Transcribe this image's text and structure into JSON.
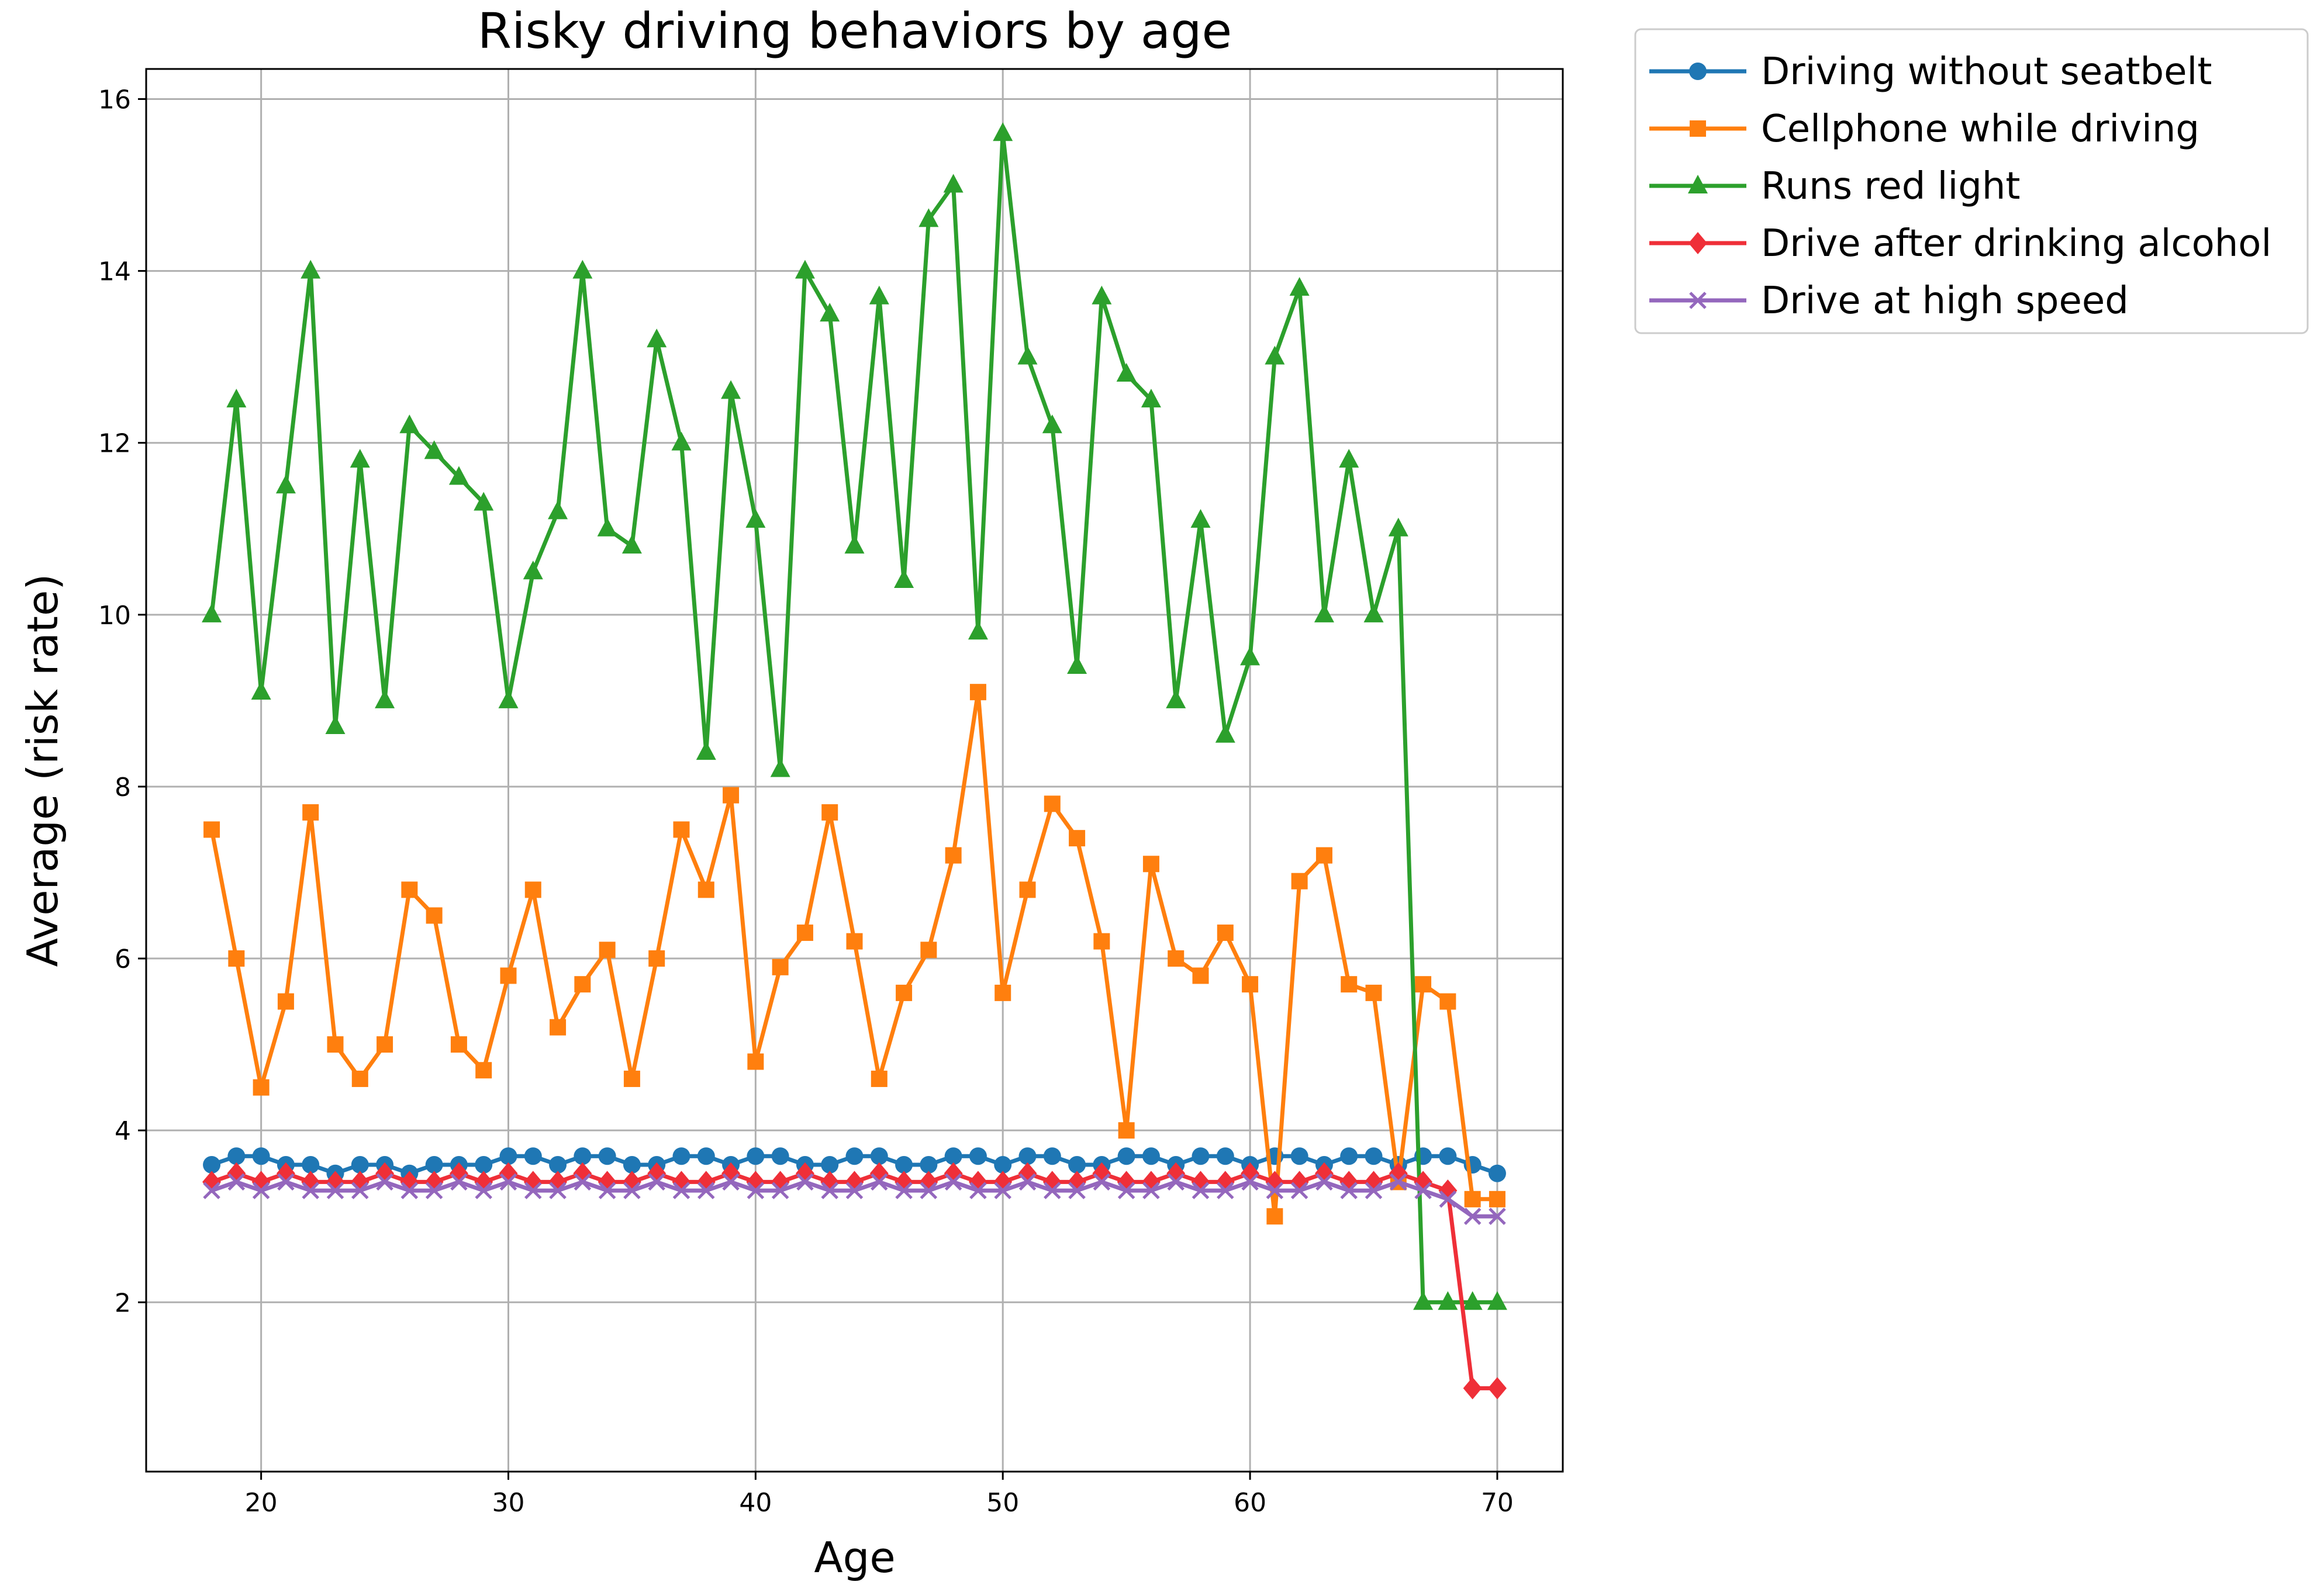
{
  "chart_data": {
    "type": "line",
    "title": "Risky driving behaviors by age",
    "xlabel": "Age",
    "ylabel": "Average (risk rate)",
    "xlim": [
      15.35,
      72.65
    ],
    "ylim": [
      0.03,
      16.35
    ],
    "xticks": [
      20,
      30,
      40,
      50,
      60,
      70
    ],
    "yticks": [
      2,
      4,
      6,
      8,
      10,
      12,
      14,
      16
    ],
    "grid": true,
    "legend_position": "outside-upper-right",
    "x": [
      18,
      19,
      20,
      21,
      22,
      23,
      24,
      25,
      26,
      27,
      28,
      29,
      30,
      31,
      32,
      33,
      34,
      35,
      36,
      37,
      38,
      39,
      40,
      41,
      42,
      43,
      44,
      45,
      46,
      47,
      48,
      49,
      50,
      51,
      52,
      53,
      54,
      55,
      56,
      57,
      58,
      59,
      60,
      61,
      62,
      63,
      64,
      65,
      66,
      67,
      68,
      69,
      70
    ],
    "series": [
      {
        "name": "Driving without seatbelt",
        "color": "#1f77b4",
        "marker": "circle",
        "values": [
          3.6,
          3.7,
          3.7,
          3.6,
          3.6,
          3.5,
          3.6,
          3.6,
          3.5,
          3.6,
          3.6,
          3.6,
          3.7,
          3.7,
          3.6,
          3.7,
          3.7,
          3.6,
          3.6,
          3.7,
          3.7,
          3.6,
          3.7,
          3.7,
          3.6,
          3.6,
          3.7,
          3.7,
          3.6,
          3.6,
          3.7,
          3.7,
          3.6,
          3.7,
          3.7,
          3.6,
          3.6,
          3.7,
          3.7,
          3.6,
          3.7,
          3.7,
          3.6,
          3.7,
          3.7,
          3.6,
          3.7,
          3.7,
          3.6,
          3.7,
          3.7,
          3.6,
          3.5
        ]
      },
      {
        "name": "Cellphone while driving",
        "color": "#ff7f0e",
        "marker": "square",
        "values": [
          7.5,
          6.0,
          4.5,
          5.5,
          7.7,
          5.0,
          4.6,
          5.0,
          6.8,
          6.5,
          5.0,
          4.7,
          5.8,
          6.8,
          5.2,
          5.7,
          6.1,
          4.6,
          6.0,
          7.5,
          6.8,
          7.9,
          4.8,
          5.9,
          6.3,
          7.7,
          6.2,
          4.6,
          5.6,
          6.1,
          7.2,
          9.1,
          5.6,
          6.8,
          7.8,
          7.4,
          6.2,
          4.0,
          7.1,
          6.0,
          5.8,
          6.3,
          5.7,
          3.0,
          6.9,
          7.2,
          5.7,
          5.6,
          3.4,
          5.7,
          5.5,
          3.2,
          3.2
        ]
      },
      {
        "name": "Runs red light",
        "color": "#2ca02c",
        "marker": "triangle",
        "values": [
          10.0,
          12.5,
          9.1,
          11.5,
          14.0,
          8.7,
          11.8,
          9.0,
          12.2,
          11.9,
          11.6,
          11.3,
          9.0,
          10.5,
          11.2,
          14.0,
          11.0,
          10.8,
          13.2,
          12.0,
          8.4,
          12.6,
          11.1,
          8.2,
          14.0,
          13.5,
          10.8,
          13.7,
          10.4,
          14.6,
          15.0,
          9.8,
          15.6,
          13.0,
          12.2,
          9.4,
          13.7,
          12.8,
          12.5,
          9.0,
          11.1,
          8.6,
          9.5,
          13.0,
          13.8,
          10.0,
          11.8,
          10.0,
          11.0,
          2.0,
          2.0,
          2.0,
          2.0
        ]
      },
      {
        "name": "Drive after drinking alcohol",
        "color": "#ef2f38",
        "marker": "diamond",
        "values": [
          3.4,
          3.5,
          3.4,
          3.5,
          3.4,
          3.4,
          3.4,
          3.5,
          3.4,
          3.4,
          3.5,
          3.4,
          3.5,
          3.4,
          3.4,
          3.5,
          3.4,
          3.4,
          3.5,
          3.4,
          3.4,
          3.5,
          3.4,
          3.4,
          3.5,
          3.4,
          3.4,
          3.5,
          3.4,
          3.4,
          3.5,
          3.4,
          3.4,
          3.5,
          3.4,
          3.4,
          3.5,
          3.4,
          3.4,
          3.5,
          3.4,
          3.4,
          3.5,
          3.4,
          3.4,
          3.5,
          3.4,
          3.4,
          3.5,
          3.4,
          3.3,
          1.0,
          1.0
        ]
      },
      {
        "name": "Drive at high speed",
        "color": "#9467bd",
        "marker": "x",
        "values": [
          3.3,
          3.4,
          3.3,
          3.4,
          3.3,
          3.3,
          3.3,
          3.4,
          3.3,
          3.3,
          3.4,
          3.3,
          3.4,
          3.3,
          3.3,
          3.4,
          3.3,
          3.3,
          3.4,
          3.3,
          3.3,
          3.4,
          3.3,
          3.3,
          3.4,
          3.3,
          3.3,
          3.4,
          3.3,
          3.3,
          3.4,
          3.3,
          3.3,
          3.4,
          3.3,
          3.3,
          3.4,
          3.3,
          3.3,
          3.4,
          3.3,
          3.3,
          3.4,
          3.3,
          3.3,
          3.4,
          3.3,
          3.3,
          3.4,
          3.3,
          3.2,
          3.0,
          3.0
        ]
      }
    ]
  }
}
